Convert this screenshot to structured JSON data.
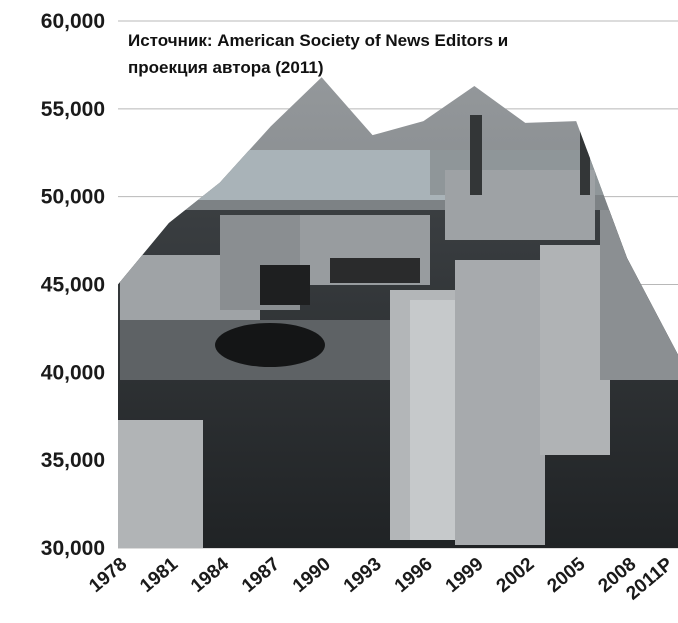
{
  "chart_data": {
    "type": "area",
    "x": [
      "1978",
      "1981",
      "1984",
      "1987",
      "1990",
      "1993",
      "1996",
      "1999",
      "2002",
      "2005",
      "2008",
      "2011P"
    ],
    "values": [
      45000,
      48500,
      50800,
      54000,
      56800,
      53500,
      54300,
      56300,
      54200,
      54300,
      46500,
      41000
    ],
    "ylim": [
      30000,
      60000
    ],
    "yticks": [
      "30,000",
      "35,000",
      "40,000",
      "45,000",
      "50,000",
      "55,000",
      "60,000"
    ],
    "grid": true,
    "fill": "newsroom cubicle photograph",
    "annotation": "Источник: American Society of News Editors и проекция автора (2011)",
    "annotation_lines": [
      "Источник: American Society of News Editors и",
      "проекция автора (2011)"
    ]
  },
  "colors": {
    "grid": "#b8b8b8",
    "text": "#1a1a1a",
    "photo_dark": "#2e3235",
    "photo_mid": "#6e7276",
    "photo_light": "#b9bcbf",
    "ceiling": "#8d9194"
  }
}
